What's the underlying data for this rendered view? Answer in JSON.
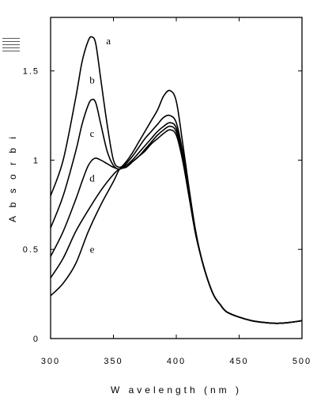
{
  "chart_data": {
    "type": "line",
    "xlabel": "W avelength (nm )",
    "ylabel": "A b s o r b i",
    "xlim": [
      300,
      500
    ],
    "ylim": [
      0,
      1.8
    ],
    "xticks": [
      300,
      350,
      400,
      450,
      500
    ],
    "xtick_labels": [
      "300",
      "350",
      "400",
      "450",
      "500"
    ],
    "yticks": [
      0,
      0.5,
      1,
      1.5
    ],
    "ytick_labels": [
      "0",
      "0.5",
      "1",
      "1.5"
    ],
    "grid": false,
    "legend": "none",
    "line_color": "#000000",
    "series": [
      {
        "name": "a",
        "x": [
          300,
          310,
          320,
          325,
          330,
          333,
          336,
          340,
          345,
          350,
          355,
          360,
          365,
          370,
          375,
          380,
          385,
          390,
          395,
          400,
          405,
          410,
          415,
          420,
          425,
          430,
          435,
          440,
          450,
          460,
          470,
          480,
          490,
          500
        ],
        "y": [
          0.8,
          1.0,
          1.35,
          1.55,
          1.67,
          1.69,
          1.65,
          1.45,
          1.2,
          1.0,
          0.96,
          0.99,
          1.04,
          1.1,
          1.16,
          1.22,
          1.28,
          1.36,
          1.39,
          1.33,
          1.1,
          0.85,
          0.62,
          0.45,
          0.33,
          0.24,
          0.19,
          0.15,
          0.12,
          0.1,
          0.09,
          0.085,
          0.09,
          0.1
        ]
      },
      {
        "name": "b",
        "x": [
          300,
          310,
          320,
          325,
          330,
          333,
          336,
          340,
          345,
          350,
          355,
          360,
          365,
          370,
          375,
          380,
          385,
          390,
          395,
          400,
          405,
          410,
          415,
          420,
          425,
          430,
          435,
          440,
          450,
          460,
          470,
          480,
          490,
          500
        ],
        "y": [
          0.62,
          0.8,
          1.05,
          1.2,
          1.31,
          1.34,
          1.32,
          1.2,
          1.05,
          0.97,
          0.95,
          0.98,
          1.02,
          1.07,
          1.12,
          1.16,
          1.2,
          1.24,
          1.25,
          1.21,
          1.05,
          0.83,
          0.61,
          0.45,
          0.33,
          0.24,
          0.19,
          0.15,
          0.12,
          0.1,
          0.09,
          0.085,
          0.09,
          0.1
        ]
      },
      {
        "name": "c",
        "x": [
          300,
          310,
          320,
          325,
          330,
          335,
          340,
          345,
          350,
          355,
          360,
          365,
          370,
          375,
          380,
          385,
          390,
          395,
          400,
          405,
          410,
          415,
          420,
          425,
          430,
          435,
          440,
          450,
          460,
          470,
          480,
          490,
          500
        ],
        "y": [
          0.46,
          0.6,
          0.78,
          0.88,
          0.97,
          1.01,
          1.0,
          0.98,
          0.96,
          0.95,
          0.97,
          1.0,
          1.04,
          1.08,
          1.12,
          1.16,
          1.19,
          1.21,
          1.18,
          1.03,
          0.82,
          0.6,
          0.45,
          0.33,
          0.24,
          0.19,
          0.15,
          0.12,
          0.1,
          0.09,
          0.085,
          0.09,
          0.1
        ]
      },
      {
        "name": "d",
        "x": [
          300,
          310,
          320,
          330,
          340,
          350,
          355,
          360,
          365,
          370,
          375,
          380,
          385,
          390,
          395,
          400,
          405,
          410,
          415,
          420,
          425,
          430,
          435,
          440,
          450,
          460,
          470,
          480,
          490,
          500
        ],
        "y": [
          0.34,
          0.45,
          0.6,
          0.72,
          0.83,
          0.92,
          0.95,
          0.96,
          0.99,
          1.02,
          1.06,
          1.1,
          1.14,
          1.17,
          1.19,
          1.16,
          1.02,
          0.81,
          0.6,
          0.45,
          0.33,
          0.24,
          0.19,
          0.15,
          0.12,
          0.1,
          0.09,
          0.085,
          0.09,
          0.1
        ]
      },
      {
        "name": "e",
        "x": [
          300,
          310,
          320,
          330,
          340,
          350,
          355,
          360,
          365,
          370,
          375,
          380,
          385,
          390,
          395,
          400,
          405,
          410,
          415,
          420,
          425,
          430,
          435,
          440,
          450,
          460,
          470,
          480,
          490,
          500
        ],
        "y": [
          0.24,
          0.31,
          0.42,
          0.6,
          0.75,
          0.88,
          0.95,
          0.96,
          0.99,
          1.02,
          1.05,
          1.09,
          1.12,
          1.15,
          1.17,
          1.14,
          1.0,
          0.8,
          0.6,
          0.45,
          0.33,
          0.24,
          0.19,
          0.15,
          0.12,
          0.1,
          0.09,
          0.085,
          0.09,
          0.1
        ]
      }
    ],
    "annotations": [
      {
        "text": "a",
        "x": 346,
        "y": 1.65
      },
      {
        "text": "b",
        "x": 333,
        "y": 1.43
      },
      {
        "text": "c",
        "x": 333,
        "y": 1.13
      },
      {
        "text": "d",
        "x": 333,
        "y": 0.88
      },
      {
        "text": "e",
        "x": 333,
        "y": 0.48
      }
    ]
  }
}
